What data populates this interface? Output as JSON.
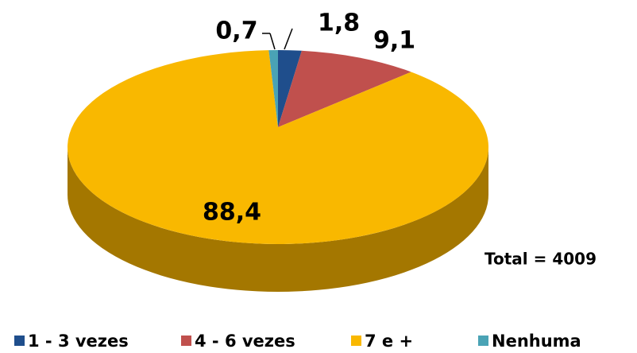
{
  "chart_data": {
    "type": "pie",
    "categories": [
      "1 - 3 vezes",
      "4 - 6 vezes",
      "7  e +",
      "Nenhuma"
    ],
    "values": [
      1.8,
      9.1,
      88.4,
      0.7
    ],
    "value_labels": [
      "1,8",
      "9,1",
      "88,4",
      "0,7"
    ],
    "colors": [
      "#1f4e8c",
      "#c0504d",
      "#f9b800",
      "#4aa3b5"
    ],
    "side_colors": [
      "#13315a",
      "#7d3230",
      "#a47700",
      "#2f6b77"
    ],
    "annotation": "Total = 4009",
    "legend": "bottom"
  }
}
